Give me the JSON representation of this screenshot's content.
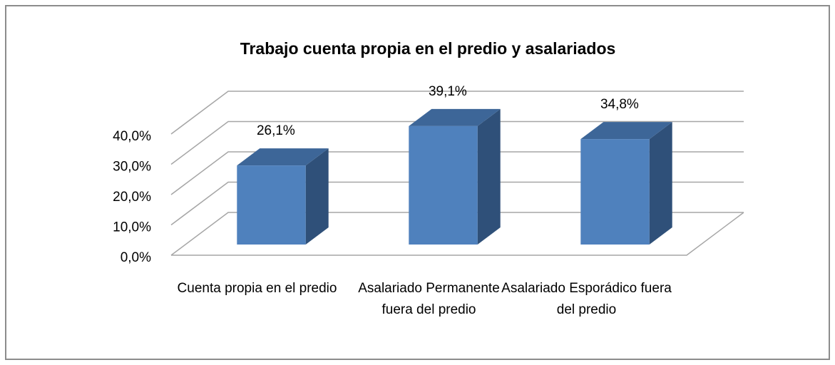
{
  "chart_data": {
    "type": "bar3d",
    "title": "Trabajo cuenta propia en el predio y asalariados",
    "categories": [
      "Cuenta propia en el predio",
      "Asalariado Permanente fuera del predio",
      "Asalariado Esporádico fuera del predio"
    ],
    "values": [
      26.1,
      39.1,
      34.8
    ],
    "value_labels": [
      "26,1%",
      "39,1%",
      "34,8%"
    ],
    "color": "#4f81bd",
    "ylim": [
      0,
      40
    ],
    "yticks": [
      {
        "value": 0,
        "label": "0,0%"
      },
      {
        "value": 10,
        "label": "10,0%"
      },
      {
        "value": 20,
        "label": "20,0%"
      },
      {
        "value": 30,
        "label": "30,0%"
      },
      {
        "value": 40,
        "label": "40,0%"
      }
    ],
    "grid": true
  }
}
